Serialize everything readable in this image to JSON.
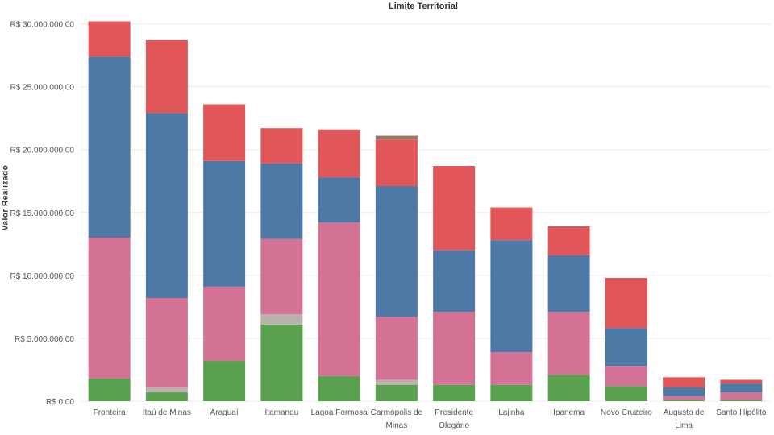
{
  "chart_data": {
    "type": "bar",
    "stacked": true,
    "title": "Limite Territorial",
    "ylabel": "Valor Realizado",
    "xlabel": "",
    "ylim": [
      0,
      31000000
    ],
    "yticks": [
      0,
      5000000,
      10000000,
      15000000,
      20000000,
      25000000,
      30000000
    ],
    "ytick_labels": [
      "R$ 0,00",
      "R$ 5.000.000,00",
      "R$ 10.000.000,00",
      "R$ 15.000.000,00",
      "R$ 20.000.000,00",
      "R$ 25.000.000,00",
      "R$ 30.000.000,00"
    ],
    "grid": true,
    "categories": [
      [
        "Fronteira"
      ],
      [
        "Itaú de Minas"
      ],
      [
        "Araguaí"
      ],
      [
        "Itamandu"
      ],
      [
        "Lagoa Formosa"
      ],
      [
        "Carmópolis de",
        "Minas"
      ],
      [
        "Presidente",
        "Olegário"
      ],
      [
        "Lajinha"
      ],
      [
        "Ipanema"
      ],
      [
        "Novo Cruzeiro"
      ],
      [
        "Augusto de",
        "Lima"
      ],
      [
        "Santo Hipólito"
      ]
    ],
    "series": [
      {
        "name": "Verde",
        "color": "#59a14f",
        "values": [
          1800000,
          700000,
          3200000,
          6100000,
          2000000,
          1300000,
          1300000,
          1300000,
          2100000,
          1200000,
          100000,
          100000
        ]
      },
      {
        "name": "Cinza",
        "color": "#bab0ac",
        "values": [
          0,
          400000,
          0,
          800000,
          0,
          400000,
          0,
          0,
          0,
          0,
          0,
          0
        ]
      },
      {
        "name": "Rosa",
        "color": "#d37295",
        "values": [
          11200000,
          7100000,
          5900000,
          6000000,
          12200000,
          5000000,
          5800000,
          2600000,
          5000000,
          1600000,
          300000,
          600000
        ]
      },
      {
        "name": "Azul",
        "color": "#4e79a7",
        "values": [
          14400000,
          14700000,
          10000000,
          6000000,
          3600000,
          10400000,
          4900000,
          8900000,
          4500000,
          3000000,
          700000,
          700000
        ]
      },
      {
        "name": "Vermelho",
        "color": "#e15759",
        "values": [
          2800000,
          5800000,
          4500000,
          2800000,
          3800000,
          3700000,
          6700000,
          2600000,
          2300000,
          4000000,
          800000,
          300000
        ]
      },
      {
        "name": "Marrom",
        "color": "#9c755f",
        "values": [
          0,
          0,
          0,
          0,
          0,
          300000,
          0,
          0,
          0,
          0,
          0,
          0
        ]
      }
    ]
  }
}
